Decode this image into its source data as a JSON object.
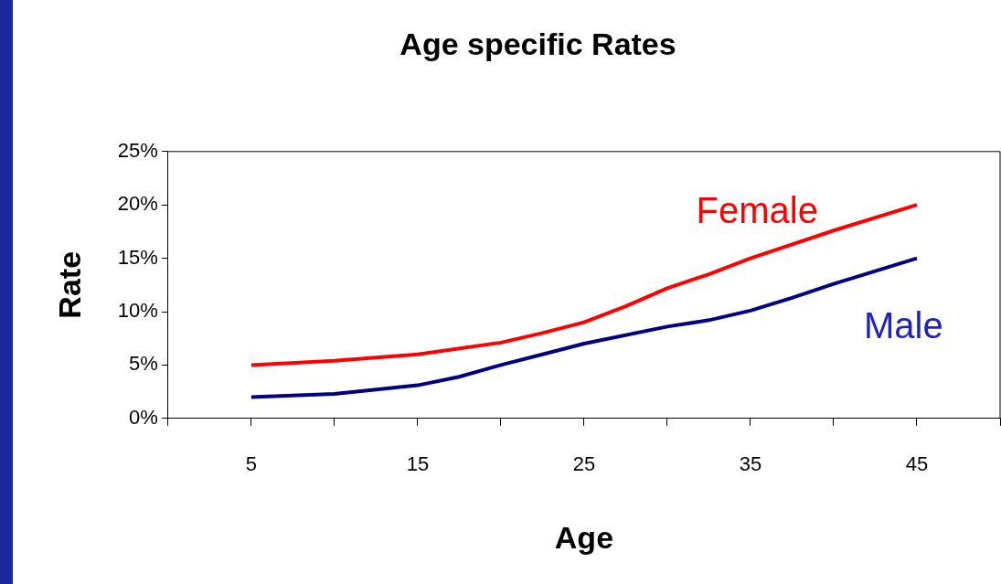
{
  "chart_data": {
    "type": "line",
    "title": "Age specific Rates",
    "xlabel": "Age",
    "ylabel": "Rate",
    "xlim": [
      0,
      50
    ],
    "xticks": [
      {
        "value": 0,
        "label": null
      },
      5,
      {
        "value": 10,
        "label": null
      },
      15,
      {
        "value": 20,
        "label": null
      },
      25,
      {
        "value": 30,
        "label": null
      },
      35,
      {
        "value": 40,
        "label": null
      },
      45,
      {
        "value": 50,
        "label": null
      }
    ],
    "ylim": [
      0,
      25
    ],
    "yticks": [
      {
        "value": 0,
        "label": "0%"
      },
      {
        "value": 5,
        "label": "5%"
      },
      {
        "value": 10,
        "label": "10%"
      },
      {
        "value": 15,
        "label": "15%"
      },
      {
        "value": 20,
        "label": "20%"
      },
      {
        "value": 25,
        "label": "25%"
      }
    ],
    "grid": false,
    "legend": false,
    "marker": "none",
    "line_style": "solid",
    "series": [
      {
        "name": "Female",
        "color": "#ff0000",
        "x": [
          5,
          10,
          15,
          20,
          22.5,
          25,
          27.5,
          30,
          32.5,
          35,
          40,
          45
        ],
        "values": [
          5,
          5.4,
          6,
          7.1,
          8,
          9,
          10.5,
          12.2,
          13.5,
          15,
          17.6,
          20
        ]
      },
      {
        "name": "Male",
        "color": "#000080",
        "x": [
          5,
          10,
          12.5,
          15,
          17.5,
          20,
          22.5,
          25,
          30,
          32.5,
          35,
          37.5,
          40,
          45
        ],
        "values": [
          2,
          2.3,
          2.7,
          3.1,
          3.9,
          5,
          6,
          7,
          8.6,
          9.2,
          10.1,
          11.3,
          12.6,
          15
        ]
      }
    ]
  }
}
